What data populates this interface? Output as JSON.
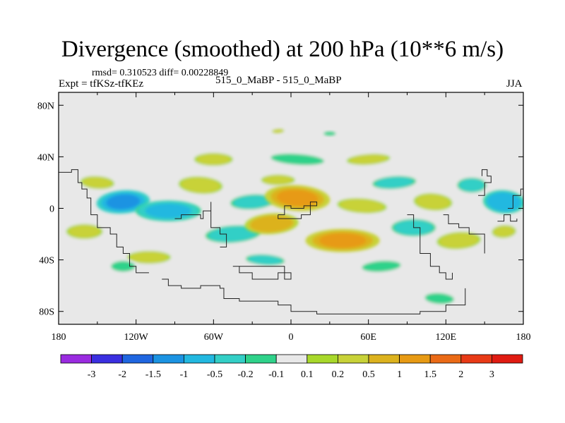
{
  "header": {
    "title": "Divergence (smoothed) at 200 hPa (10**6 m/s)",
    "stats": "rmsd= 0.310523 diff= 0.00228849",
    "expt": "Expt = tfKSz-tfKEz",
    "center_label": "515_0_MaBP - 515_0_MaBP",
    "season": "JJA"
  },
  "chart_data": {
    "type": "heatmap",
    "title": "Divergence (smoothed) at 200 hPa (10**6 m/s)",
    "xlabel": "",
    "ylabel": "",
    "xlim": [
      -180,
      180
    ],
    "ylim": [
      -90,
      90
    ],
    "x_ticks": [
      {
        "value": -180,
        "label": "180"
      },
      {
        "value": -120,
        "label": "120W"
      },
      {
        "value": -60,
        "label": "60W"
      },
      {
        "value": 0,
        "label": "0"
      },
      {
        "value": 60,
        "label": "60E"
      },
      {
        "value": 120,
        "label": "120E"
      },
      {
        "value": 180,
        "label": "180"
      }
    ],
    "y_ticks": [
      {
        "value": 80,
        "label": "80N"
      },
      {
        "value": 40,
        "label": "40N"
      },
      {
        "value": 0,
        "label": "0"
      },
      {
        "value": -40,
        "label": "40S"
      },
      {
        "value": -80,
        "label": "80S"
      }
    ],
    "colorbar": {
      "labels": [
        "-3",
        "-2",
        "-1.5",
        "-1",
        "-0.5",
        "-0.2",
        "-0.1",
        "0.1",
        "0.2",
        "0.5",
        "1",
        "1.5",
        "2",
        "3"
      ],
      "colors": [
        "#9a2be0",
        "#3a2fe0",
        "#1f66e0",
        "#1b93e2",
        "#22b8e0",
        "#33cfc6",
        "#2fd28a",
        "#e8e8e8",
        "#a8d82a",
        "#c8d238",
        "#dcb21e",
        "#e79a14",
        "#ea6a16",
        "#e83a16",
        "#e01b12"
      ]
    },
    "blobs": [
      {
        "lon": -130,
        "lat": 5,
        "rlon": 18,
        "rlat": 9,
        "value": -1.2
      },
      {
        "lon": -95,
        "lat": -2,
        "rlon": 22,
        "rlat": 8,
        "value": -0.8
      },
      {
        "lon": -70,
        "lat": 18,
        "rlon": 16,
        "rlat": 7,
        "value": 0.4
      },
      {
        "lon": -45,
        "lat": -20,
        "rlon": 20,
        "rlat": 7,
        "value": -0.4
      },
      {
        "lon": -160,
        "lat": -18,
        "rlon": 15,
        "rlat": 7,
        "value": 0.3
      },
      {
        "lon": -150,
        "lat": 20,
        "rlon": 14,
        "rlat": 6,
        "value": 0.3
      },
      {
        "lon": -30,
        "lat": 5,
        "rlon": 18,
        "rlat": 7,
        "value": -0.3
      },
      {
        "lon": -10,
        "lat": 22,
        "rlon": 14,
        "rlat": 5,
        "value": 0.3
      },
      {
        "lon": 5,
        "lat": 8,
        "rlon": 22,
        "rlat": 10,
        "value": 1.2
      },
      {
        "lon": -15,
        "lat": -12,
        "rlon": 18,
        "rlat": 8,
        "value": 1.1
      },
      {
        "lon": 40,
        "lat": -25,
        "rlon": 25,
        "rlat": 9,
        "value": 1.2
      },
      {
        "lon": 55,
        "lat": 2,
        "rlon": 18,
        "rlat": 6,
        "value": 0.5
      },
      {
        "lon": 80,
        "lat": 20,
        "rlon": 18,
        "rlat": 6,
        "value": -0.3
      },
      {
        "lon": 95,
        "lat": -15,
        "rlon": 16,
        "rlat": 7,
        "value": -0.5
      },
      {
        "lon": 110,
        "lat": 5,
        "rlon": 14,
        "rlat": 7,
        "value": 0.4
      },
      {
        "lon": 130,
        "lat": -25,
        "rlon": 16,
        "rlat": 7,
        "value": 0.4
      },
      {
        "lon": 140,
        "lat": 18,
        "rlon": 12,
        "rlat": 7,
        "value": -0.3
      },
      {
        "lon": 165,
        "lat": 5,
        "rlon": 14,
        "rlat": 9,
        "value": -1.0
      },
      {
        "lon": 165,
        "lat": -18,
        "rlon": 10,
        "rlat": 6,
        "value": 0.3
      },
      {
        "lon": -60,
        "lat": 38,
        "rlon": 16,
        "rlat": 6,
        "value": 0.3
      },
      {
        "lon": 5,
        "lat": 38,
        "rlon": 22,
        "rlat": 5,
        "value": -0.2
      },
      {
        "lon": 60,
        "lat": 38,
        "rlon": 18,
        "rlat": 5,
        "value": 0.3
      },
      {
        "lon": -110,
        "lat": -38,
        "rlon": 18,
        "rlat": 6,
        "value": 0.3
      },
      {
        "lon": -20,
        "lat": -40,
        "rlon": 16,
        "rlat": 5,
        "value": -0.3
      },
      {
        "lon": 70,
        "lat": -45,
        "rlon": 16,
        "rlat": 5,
        "value": -0.2
      },
      {
        "lon": -130,
        "lat": -45,
        "rlon": 10,
        "rlat": 5,
        "value": -0.2
      },
      {
        "lon": 115,
        "lat": -70,
        "rlon": 12,
        "rlat": 5,
        "value": -0.2
      },
      {
        "lon": -10,
        "lat": 60,
        "rlon": 5,
        "rlat": 2,
        "value": 0.3
      },
      {
        "lon": 30,
        "lat": 58,
        "rlon": 5,
        "rlat": 2,
        "value": -0.2
      }
    ]
  }
}
